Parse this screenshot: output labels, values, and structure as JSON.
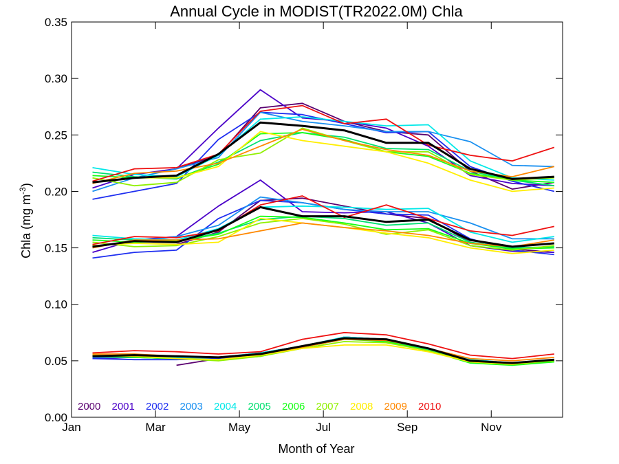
{
  "chart_data": {
    "type": "line",
    "title": "Annual Cycle in MODIST(TR2022.0M) Chla",
    "xlabel": "Month of Year",
    "ylabel": "Chla (mg m",
    "ylabel_sup": "-3",
    "ylabel_close": ")",
    "xlim": [
      1,
      12.7
    ],
    "ylim": [
      0,
      0.35
    ],
    "x_ticks": [
      {
        "value": 1,
        "label": "Jan"
      },
      {
        "value": 3,
        "label": "Mar"
      },
      {
        "value": 5,
        "label": "May"
      },
      {
        "value": 7,
        "label": "Jul"
      },
      {
        "value": 9,
        "label": "Sep"
      },
      {
        "value": 11,
        "label": "Nov"
      }
    ],
    "y_ticks": [
      {
        "value": 0.0,
        "label": "0.00"
      },
      {
        "value": 0.05,
        "label": "0.05"
      },
      {
        "value": 0.1,
        "label": "0.10"
      },
      {
        "value": 0.15,
        "label": "0.15"
      },
      {
        "value": 0.2,
        "label": "0.20"
      },
      {
        "value": 0.25,
        "label": "0.25"
      },
      {
        "value": 0.3,
        "label": "0.30"
      },
      {
        "value": 0.35,
        "label": "0.35"
      }
    ],
    "x": [
      1.5,
      2.5,
      3.5,
      4.5,
      5.5,
      6.5,
      7.5,
      8.5,
      9.5,
      10.5,
      11.5,
      12.5
    ],
    "legend_placement": "bottom-left",
    "mean_color": "#000000",
    "series": [
      {
        "name": "2000",
        "color": "#5a0070",
        "upper": [
          null,
          null,
          0.22,
          0.232,
          0.274,
          0.278,
          0.262,
          0.253,
          0.25,
          0.218,
          0.202,
          0.208
        ],
        "middle": [
          null,
          null,
          0.153,
          0.164,
          0.192,
          0.194,
          0.187,
          0.18,
          0.176,
          0.155,
          0.149,
          0.146
        ],
        "lower": [
          null,
          null,
          0.046,
          0.052,
          0.056,
          0.062,
          0.071,
          0.069,
          0.061,
          0.05,
          0.047,
          0.05
        ]
      },
      {
        "name": "2001",
        "color": "#4b00c8",
        "upper": [
          0.203,
          0.215,
          0.22,
          0.256,
          0.29,
          0.265,
          0.262,
          0.256,
          0.24,
          0.214,
          0.207,
          0.205
        ],
        "middle": [
          0.146,
          0.157,
          0.16,
          0.187,
          0.21,
          0.182,
          0.181,
          0.182,
          0.172,
          0.152,
          0.147,
          0.146
        ],
        "lower": [
          0.052,
          0.053,
          0.052,
          0.052,
          0.057,
          0.063,
          0.07,
          0.068,
          0.06,
          0.05,
          0.047,
          0.05
        ]
      },
      {
        "name": "2002",
        "color": "#1f2ff0",
        "upper": [
          0.193,
          0.2,
          0.207,
          0.246,
          0.27,
          0.268,
          0.26,
          0.252,
          0.253,
          0.222,
          0.209,
          0.2
        ],
        "middle": [
          0.141,
          0.146,
          0.148,
          0.176,
          0.192,
          0.19,
          0.184,
          0.18,
          0.179,
          0.158,
          0.148,
          0.144
        ],
        "lower": [
          0.052,
          0.051,
          0.051,
          0.052,
          0.056,
          0.062,
          0.07,
          0.068,
          0.06,
          0.05,
          0.047,
          0.05
        ]
      },
      {
        "name": "2003",
        "color": "#1a90f0",
        "upper": [
          0.2,
          0.212,
          0.22,
          0.23,
          0.27,
          0.262,
          0.258,
          0.253,
          0.253,
          0.244,
          0.223,
          0.222
        ],
        "middle": [
          0.151,
          0.155,
          0.16,
          0.17,
          0.195,
          0.19,
          0.184,
          0.182,
          0.182,
          0.172,
          0.158,
          0.158
        ],
        "lower": [
          0.053,
          0.053,
          0.052,
          0.053,
          0.057,
          0.063,
          0.071,
          0.069,
          0.061,
          0.051,
          0.048,
          0.051
        ]
      },
      {
        "name": "2004",
        "color": "#00e8e8",
        "upper": [
          0.221,
          0.215,
          0.213,
          0.232,
          0.264,
          0.266,
          0.262,
          0.258,
          0.259,
          0.227,
          0.212,
          0.21
        ],
        "middle": [
          0.161,
          0.158,
          0.157,
          0.167,
          0.186,
          0.187,
          0.186,
          0.184,
          0.185,
          0.164,
          0.155,
          0.16
        ],
        "lower": [
          0.054,
          0.054,
          0.053,
          0.053,
          0.057,
          0.063,
          0.071,
          0.069,
          0.061,
          0.051,
          0.048,
          0.051
        ]
      },
      {
        "name": "2005",
        "color": "#00e070",
        "upper": [
          0.217,
          0.213,
          0.211,
          0.226,
          0.245,
          0.252,
          0.248,
          0.238,
          0.237,
          0.218,
          0.21,
          0.205
        ],
        "middle": [
          0.159,
          0.157,
          0.156,
          0.163,
          0.175,
          0.178,
          0.176,
          0.17,
          0.172,
          0.155,
          0.15,
          0.151
        ],
        "lower": [
          0.054,
          0.054,
          0.052,
          0.051,
          0.054,
          0.062,
          0.07,
          0.068,
          0.06,
          0.049,
          0.047,
          0.049
        ]
      },
      {
        "name": "2006",
        "color": "#18ff18",
        "upper": [
          0.214,
          0.212,
          0.212,
          0.224,
          0.251,
          0.252,
          0.246,
          0.235,
          0.231,
          0.216,
          0.21,
          0.208
        ],
        "middle": [
          0.157,
          0.155,
          0.156,
          0.162,
          0.178,
          0.177,
          0.172,
          0.166,
          0.167,
          0.154,
          0.149,
          0.15
        ],
        "lower": [
          0.054,
          0.053,
          0.052,
          0.051,
          0.054,
          0.062,
          0.069,
          0.067,
          0.059,
          0.048,
          0.046,
          0.049
        ]
      },
      {
        "name": "2007",
        "color": "#90f000",
        "upper": [
          0.212,
          0.205,
          0.208,
          0.228,
          0.234,
          0.256,
          0.245,
          0.235,
          0.235,
          0.215,
          0.21,
          0.212
        ],
        "middle": [
          0.155,
          0.151,
          0.152,
          0.16,
          0.172,
          0.176,
          0.171,
          0.162,
          0.166,
          0.152,
          0.148,
          0.152
        ],
        "lower": [
          0.055,
          0.054,
          0.052,
          0.05,
          0.054,
          0.061,
          0.067,
          0.066,
          0.059,
          0.049,
          0.047,
          0.05
        ]
      },
      {
        "name": "2008",
        "color": "#ffee00",
        "upper": [
          0.208,
          0.212,
          0.212,
          0.222,
          0.253,
          0.245,
          0.24,
          0.235,
          0.225,
          0.21,
          0.2,
          0.203
        ],
        "middle": [
          0.152,
          0.154,
          0.153,
          0.155,
          0.176,
          0.172,
          0.168,
          0.163,
          0.159,
          0.15,
          0.145,
          0.148
        ],
        "lower": [
          0.055,
          0.054,
          0.052,
          0.051,
          0.055,
          0.061,
          0.064,
          0.064,
          0.058,
          0.049,
          0.047,
          0.051
        ]
      },
      {
        "name": "2009",
        "color": "#ff8800",
        "upper": [
          0.207,
          0.216,
          0.218,
          0.225,
          0.24,
          0.255,
          0.245,
          0.237,
          0.232,
          0.218,
          0.213,
          0.222
        ],
        "middle": [
          0.15,
          0.157,
          0.157,
          0.158,
          0.165,
          0.172,
          0.168,
          0.165,
          0.161,
          0.154,
          0.151,
          0.157
        ],
        "lower": [
          0.056,
          0.056,
          0.054,
          0.053,
          0.056,
          0.062,
          0.069,
          0.068,
          0.061,
          0.052,
          0.05,
          0.053
        ]
      },
      {
        "name": "2010",
        "color": "#ee1111",
        "upper": [
          0.209,
          0.22,
          0.221,
          0.233,
          0.271,
          0.276,
          0.26,
          0.264,
          0.241,
          0.232,
          0.227,
          0.239
        ],
        "middle": [
          0.153,
          0.16,
          0.159,
          0.165,
          0.188,
          0.196,
          0.177,
          0.188,
          0.176,
          0.165,
          0.161,
          0.169
        ],
        "lower": [
          0.057,
          0.059,
          0.058,
          0.056,
          0.058,
          0.069,
          0.075,
          0.073,
          0.065,
          0.055,
          0.052,
          0.056
        ]
      }
    ],
    "mean": {
      "upper": [
        0.208,
        0.212,
        0.214,
        0.233,
        0.261,
        0.258,
        0.254,
        0.243,
        0.243,
        0.22,
        0.211,
        0.213
      ],
      "middle": [
        0.151,
        0.156,
        0.155,
        0.166,
        0.186,
        0.178,
        0.178,
        0.173,
        0.175,
        0.157,
        0.151,
        0.154
      ],
      "lower": [
        0.054,
        0.055,
        0.054,
        0.053,
        0.056,
        0.063,
        0.07,
        0.069,
        0.061,
        0.05,
        0.048,
        0.051
      ]
    }
  }
}
